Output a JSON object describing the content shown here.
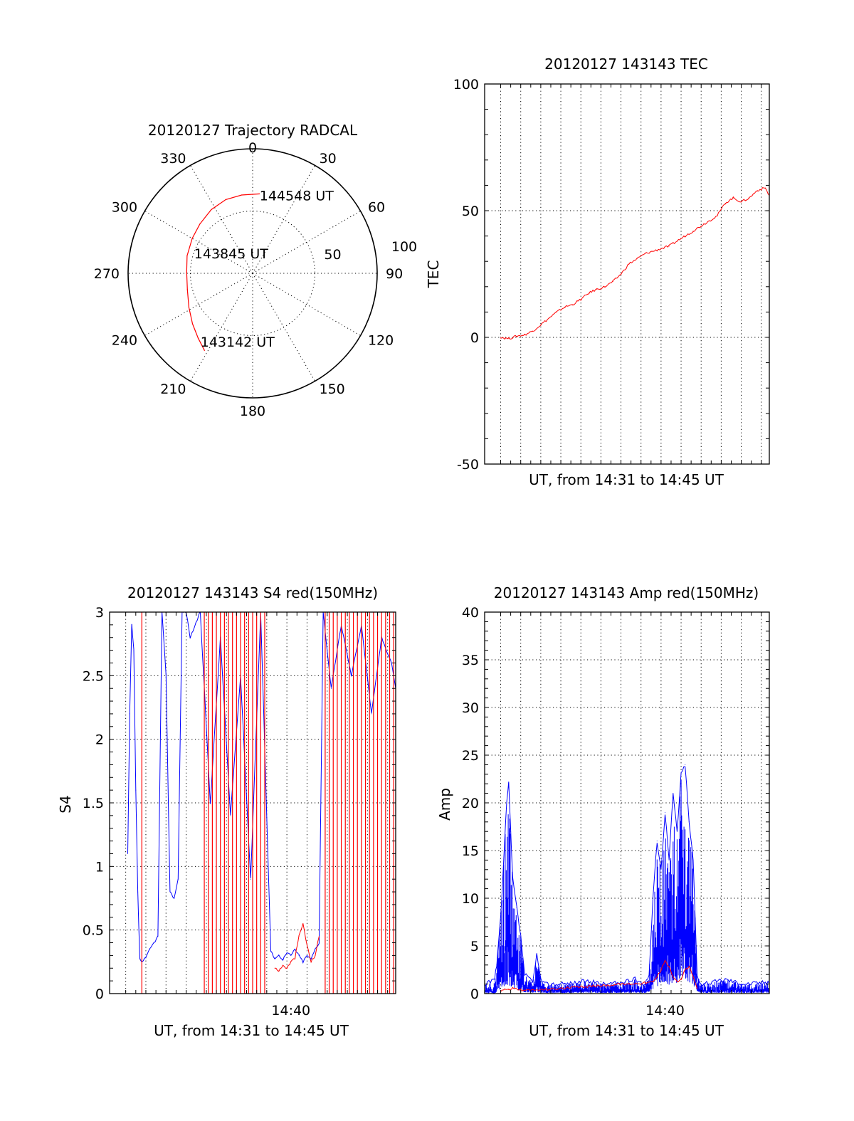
{
  "colors": {
    "red": "#ff0000",
    "blue": "#0000ff",
    "axis": "#000000",
    "background": "#ffffff"
  },
  "chart_data": [
    {
      "type": "polar",
      "title": "20120127 Trajectory RADCAL",
      "azimuth_labels": [
        "0",
        "30",
        "60",
        "90",
        "120",
        "150",
        "180",
        "210",
        "240",
        "270",
        "300",
        "330"
      ],
      "radial_rings": [
        50,
        100
      ],
      "radial_labels": [
        "50",
        "100"
      ],
      "series": [
        {
          "color": "red",
          "points": [
            {
              "az": 212,
              "za": 73
            },
            {
              "az": 220,
              "za": 68
            },
            {
              "az": 230,
              "za": 63
            },
            {
              "az": 242,
              "za": 58
            },
            {
              "az": 256,
              "za": 54
            },
            {
              "az": 271,
              "za": 53
            },
            {
              "az": 285,
              "za": 54.5
            },
            {
              "az": 300,
              "za": 56
            },
            {
              "az": 313,
              "za": 58
            },
            {
              "az": 327,
              "za": 61
            },
            {
              "az": 340,
              "za": 63
            },
            {
              "az": 352,
              "za": 63.5
            },
            {
              "az": 5,
              "za": 64
            }
          ]
        }
      ],
      "annotations": [
        {
          "text": "144548 UT",
          "az": 5,
          "za": 64
        },
        {
          "text": "143845 UT",
          "az": 290,
          "za": 50
        },
        {
          "text": "143142 UT",
          "az": 218,
          "za": 68
        }
      ]
    },
    {
      "type": "line",
      "title": "20120127 143143 TEC",
      "xlabel": "UT, from 14:31 to 14:45 UT",
      "ylabel": "TEC",
      "xlim": [
        0,
        14.2
      ],
      "ylim": [
        -50,
        100
      ],
      "yticks": [
        "-50",
        "0",
        "50",
        "100"
      ],
      "grid": true,
      "series": [
        {
          "color": "red",
          "x": [
            0.8,
            1.2,
            1.6,
            2.0,
            2.4,
            2.8,
            3.2,
            3.6,
            4.0,
            4.4,
            4.8,
            5.2,
            5.6,
            6.0,
            6.4,
            6.8,
            7.2,
            7.6,
            8.0,
            8.4,
            8.8,
            9.2,
            9.6,
            10.0,
            10.4,
            10.8,
            11.2,
            11.6,
            12.0,
            12.4,
            12.8,
            13.2,
            13.6,
            14.0,
            14.2
          ],
          "y": [
            0,
            -0.5,
            0.5,
            1,
            2.5,
            5,
            7.5,
            10,
            12,
            13,
            15,
            17.5,
            19,
            20,
            22,
            25,
            29,
            31,
            33,
            34,
            35,
            36,
            38,
            40,
            42,
            44,
            46,
            48,
            53,
            55,
            53.5,
            55,
            58,
            59,
            56
          ]
        }
      ]
    },
    {
      "type": "line",
      "title": "20120127 143143 S4 red(150MHz)",
      "xlabel": "UT, from 14:31 to 14:45 UT",
      "ylabel": "S4",
      "xlim": [
        0,
        14.2
      ],
      "ylim": [
        0,
        3
      ],
      "yticks": [
        "0",
        "0.5",
        "1",
        "1.5",
        "2",
        "2.5",
        "3"
      ],
      "xtick_labels": [
        {
          "x": 9.0,
          "label": "14:40"
        }
      ],
      "grid": true,
      "series": [
        {
          "name": "blue",
          "color": "blue",
          "x": [
            0.9,
            1.0,
            1.1,
            1.2,
            1.3,
            1.4,
            1.5,
            1.6,
            1.8,
            2.0,
            2.2,
            2.4,
            2.6,
            2.8,
            3.0,
            3.2,
            3.4,
            3.6,
            3.8,
            4.0,
            4.5,
            5.0,
            5.5,
            6.0,
            6.5,
            7.0,
            7.5,
            8.0,
            8.2,
            8.4,
            8.6,
            8.8,
            9.0,
            9.2,
            9.4,
            9.6,
            9.8,
            10.0,
            10.2,
            10.4,
            10.6,
            11.0,
            11.5,
            12.0,
            12.5,
            13.0,
            13.5,
            14.0,
            14.2
          ],
          "y": [
            1.1,
            2.2,
            2.9,
            2.7,
            1.6,
            0.8,
            0.27,
            0.25,
            0.28,
            0.35,
            0.4,
            0.45,
            3.0,
            2.5,
            0.8,
            0.75,
            0.9,
            3.0,
            3.0,
            2.8,
            3.0,
            1.5,
            2.8,
            1.4,
            2.5,
            0.9,
            3.0,
            0.33,
            0.28,
            0.3,
            0.27,
            0.32,
            0.3,
            0.35,
            0.3,
            0.25,
            0.3,
            0.27,
            0.35,
            0.4,
            3.0,
            2.4,
            2.9,
            2.5,
            2.9,
            2.2,
            2.8,
            2.6,
            2.4
          ]
        },
        {
          "name": "red",
          "color": "red",
          "x": [
            8.2,
            8.4,
            8.6,
            8.8,
            9.0,
            9.2,
            9.4,
            9.6,
            9.8,
            10.0,
            10.2,
            10.4
          ],
          "y": [
            0.2,
            0.18,
            0.22,
            0.2,
            0.25,
            0.28,
            0.45,
            0.55,
            0.38,
            0.25,
            0.3,
            0.45
          ]
        }
      ],
      "spikes": [
        {
          "color": "red",
          "x": [
            1.6,
            4.7,
            4.9,
            5.1,
            5.3,
            5.5,
            5.7,
            5.9,
            6.1,
            6.3,
            6.5,
            6.7,
            6.9,
            7.1,
            7.3,
            7.5,
            7.7,
            10.7,
            10.9,
            11.1,
            11.3,
            11.5,
            11.7,
            11.9,
            12.1,
            12.3,
            12.5,
            12.7,
            12.9,
            13.1,
            13.3,
            13.5,
            13.7,
            13.9,
            14.1
          ]
        }
      ]
    },
    {
      "type": "line",
      "title": "20120127 143143 Amp red(150MHz)",
      "xlabel": "UT, from 14:31 to 14:45 UT",
      "ylabel": "Amp",
      "xlim": [
        0,
        14.2
      ],
      "ylim": [
        0,
        40
      ],
      "yticks": [
        "0",
        "5",
        "10",
        "15",
        "20",
        "25",
        "30",
        "35",
        "40"
      ],
      "xtick_labels": [
        {
          "x": 9.0,
          "label": "14:40"
        }
      ],
      "grid": true,
      "series": [
        {
          "name": "blue",
          "color": "blue",
          "x": [
            0.0,
            0.5,
            0.6,
            0.8,
            1.0,
            1.1,
            1.2,
            1.3,
            1.4,
            1.6,
            1.8,
            2.0,
            2.4,
            2.6,
            2.8,
            3.0,
            4.0,
            5.0,
            6.0,
            7.0,
            7.5,
            8.0,
            8.2,
            8.4,
            8.6,
            8.8,
            9.0,
            9.2,
            9.4,
            9.6,
            9.8,
            10.0,
            10.2,
            10.4,
            10.5,
            10.6,
            10.8,
            11.0,
            12.0,
            13.0,
            14.0,
            14.2
          ],
          "y": [
            1,
            1.5,
            3,
            8,
            16,
            20,
            22,
            17,
            12,
            9,
            6,
            2,
            1.2,
            4,
            1.5,
            1,
            1,
            1.3,
            1,
            1.2,
            1.5,
            1,
            2,
            10,
            16,
            13,
            19,
            14,
            21,
            17,
            23,
            24,
            18,
            14,
            8,
            2,
            1,
            1,
            1.5,
            1,
            1.2,
            1
          ],
          "envelope_low": [
            0,
            0,
            0.5,
            1.5,
            2.5,
            3,
            3,
            2.5,
            2,
            1.5,
            1,
            0.5,
            0.3,
            0.5,
            0.3,
            0.2,
            0.2,
            0.3,
            0.2,
            0.3,
            0.3,
            0.2,
            0.5,
            1.5,
            2.5,
            3,
            4,
            3,
            4,
            3.5,
            5,
            5,
            4,
            3,
            2,
            0.5,
            0.3,
            0.2,
            0.3,
            0.2,
            0.3,
            0.2
          ]
        },
        {
          "name": "red",
          "color": "red",
          "x": [
            0.8,
            1.0,
            1.2,
            1.4,
            1.6,
            1.8,
            2.0,
            8.4,
            8.6,
            8.8,
            9.0,
            9.2,
            9.4,
            9.6,
            9.8,
            10.0,
            10.2,
            10.4,
            10.6
          ],
          "y": [
            0.3,
            0.5,
            0.4,
            0.6,
            0.5,
            0.4,
            0.3,
            1.2,
            1.8,
            2.5,
            3.5,
            2.8,
            1.8,
            1.2,
            1.5,
            2.5,
            2.8,
            1.8,
            0.5
          ]
        }
      ]
    }
  ]
}
